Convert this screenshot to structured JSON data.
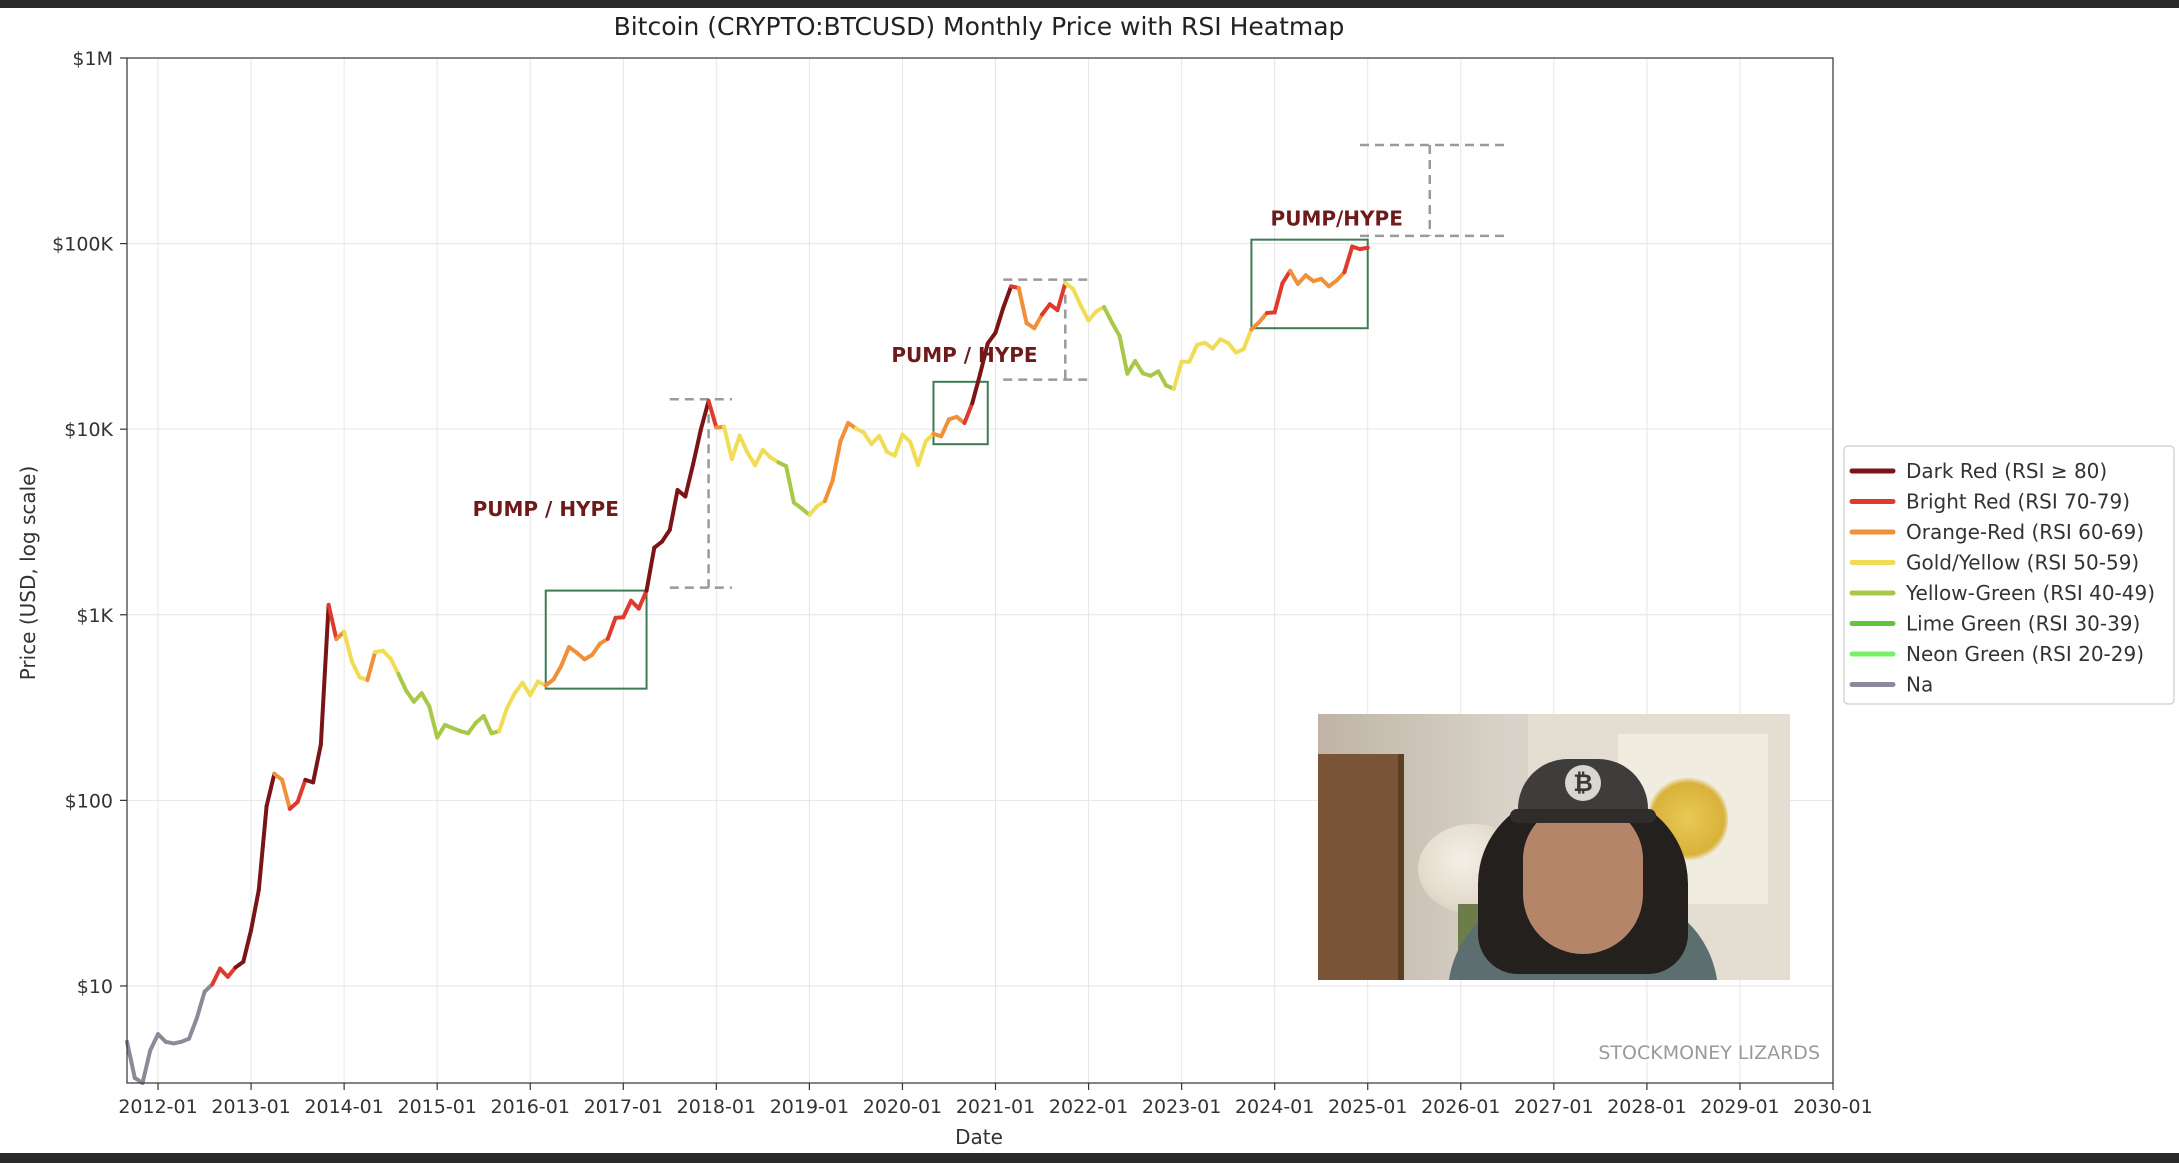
{
  "chart_data": {
    "type": "line",
    "title": "Bitcoin (CRYPTO:BTCUSD) Monthly Price with RSI Heatmap",
    "xlabel": "Date",
    "ylabel": "Price (USD, log scale)",
    "y_scale": "log",
    "ylim": [
      3,
      1000000
    ],
    "xlim": [
      "2011-09",
      "2030-01"
    ],
    "grid": true,
    "legend_position": "right",
    "x_ticks": [
      "2012-01",
      "2013-01",
      "2014-01",
      "2015-01",
      "2016-01",
      "2017-01",
      "2018-01",
      "2019-01",
      "2020-01",
      "2021-01",
      "2022-01",
      "2023-01",
      "2024-01",
      "2025-01",
      "2026-01",
      "2027-01",
      "2028-01",
      "2029-01",
      "2030-01"
    ],
    "y_ticks": [
      {
        "value": 10,
        "label": "$10"
      },
      {
        "value": 100,
        "label": "$100"
      },
      {
        "value": 1000,
        "label": "$1K"
      },
      {
        "value": 10000,
        "label": "$10K"
      },
      {
        "value": 100000,
        "label": "$100K"
      },
      {
        "value": 1000000,
        "label": "$1M"
      }
    ],
    "rsi_colors": {
      "DR": "#7a1416",
      "BR": "#e03a2f",
      "OR": "#f0913a",
      "GY": "#f1dd55",
      "YG": "#a8c84a",
      "LG": "#5cc63c",
      "NG": "#79f06a",
      "NA": "#8a8a99"
    },
    "legend": [
      {
        "key": "DR",
        "label": "Dark Red (RSI ≥ 80)"
      },
      {
        "key": "BR",
        "label": "Bright Red (RSI 70-79)"
      },
      {
        "key": "OR",
        "label": "Orange-Red (RSI 60-69)"
      },
      {
        "key": "GY",
        "label": "Gold/Yellow (RSI 50-59)"
      },
      {
        "key": "YG",
        "label": "Yellow-Green (RSI 40-49)"
      },
      {
        "key": "LG",
        "label": "Lime Green (RSI 30-39)"
      },
      {
        "key": "NG",
        "label": "Neon Green (RSI 20-29)"
      },
      {
        "key": "NA",
        "label": "Na"
      }
    ],
    "series": [
      {
        "x": "2011-09",
        "y": 5,
        "rsi": "NA"
      },
      {
        "x": "2011-10",
        "y": 3.2,
        "rsi": "NA"
      },
      {
        "x": "2011-11",
        "y": 3.0,
        "rsi": "NA"
      },
      {
        "x": "2011-12",
        "y": 4.5,
        "rsi": "NA"
      },
      {
        "x": "2012-01",
        "y": 5.5,
        "rsi": "NA"
      },
      {
        "x": "2012-02",
        "y": 5.0,
        "rsi": "NA"
      },
      {
        "x": "2012-03",
        "y": 4.9,
        "rsi": "NA"
      },
      {
        "x": "2012-04",
        "y": 5.0,
        "rsi": "NA"
      },
      {
        "x": "2012-05",
        "y": 5.2,
        "rsi": "NA"
      },
      {
        "x": "2012-06",
        "y": 6.7,
        "rsi": "NA"
      },
      {
        "x": "2012-07",
        "y": 9.3,
        "rsi": "NA"
      },
      {
        "x": "2012-08",
        "y": 10.2,
        "rsi": "NA"
      },
      {
        "x": "2012-09",
        "y": 12.4,
        "rsi": "BR"
      },
      {
        "x": "2012-10",
        "y": 11.2,
        "rsi": "BR"
      },
      {
        "x": "2012-11",
        "y": 12.6,
        "rsi": "BR"
      },
      {
        "x": "2012-12",
        "y": 13.5,
        "rsi": "DR"
      },
      {
        "x": "2013-01",
        "y": 20,
        "rsi": "DR"
      },
      {
        "x": "2013-02",
        "y": 33,
        "rsi": "DR"
      },
      {
        "x": "2013-03",
        "y": 93,
        "rsi": "DR"
      },
      {
        "x": "2013-04",
        "y": 139,
        "rsi": "DR"
      },
      {
        "x": "2013-05",
        "y": 129,
        "rsi": "OR"
      },
      {
        "x": "2013-06",
        "y": 90,
        "rsi": "OR"
      },
      {
        "x": "2013-07",
        "y": 98,
        "rsi": "BR"
      },
      {
        "x": "2013-08",
        "y": 129,
        "rsi": "BR"
      },
      {
        "x": "2013-09",
        "y": 125,
        "rsi": "DR"
      },
      {
        "x": "2013-10",
        "y": 200,
        "rsi": "DR"
      },
      {
        "x": "2013-11",
        "y": 1130,
        "rsi": "DR"
      },
      {
        "x": "2013-12",
        "y": 740,
        "rsi": "BR"
      },
      {
        "x": "2014-01",
        "y": 810,
        "rsi": "OR"
      },
      {
        "x": "2014-02",
        "y": 560,
        "rsi": "GY"
      },
      {
        "x": "2014-03",
        "y": 460,
        "rsi": "GY"
      },
      {
        "x": "2014-04",
        "y": 445,
        "rsi": "GY"
      },
      {
        "x": "2014-05",
        "y": 630,
        "rsi": "OR"
      },
      {
        "x": "2014-06",
        "y": 640,
        "rsi": "GY"
      },
      {
        "x": "2014-07",
        "y": 580,
        "rsi": "GY"
      },
      {
        "x": "2014-08",
        "y": 480,
        "rsi": "GY"
      },
      {
        "x": "2014-09",
        "y": 390,
        "rsi": "YG"
      },
      {
        "x": "2014-10",
        "y": 340,
        "rsi": "YG"
      },
      {
        "x": "2014-11",
        "y": 378,
        "rsi": "YG"
      },
      {
        "x": "2014-12",
        "y": 320,
        "rsi": "YG"
      },
      {
        "x": "2015-01",
        "y": 218,
        "rsi": "YG"
      },
      {
        "x": "2015-02",
        "y": 255,
        "rsi": "YG"
      },
      {
        "x": "2015-03",
        "y": 245,
        "rsi": "YG"
      },
      {
        "x": "2015-04",
        "y": 236,
        "rsi": "YG"
      },
      {
        "x": "2015-05",
        "y": 230,
        "rsi": "YG"
      },
      {
        "x": "2015-06",
        "y": 262,
        "rsi": "YG"
      },
      {
        "x": "2015-07",
        "y": 285,
        "rsi": "YG"
      },
      {
        "x": "2015-08",
        "y": 230,
        "rsi": "YG"
      },
      {
        "x": "2015-09",
        "y": 236,
        "rsi": "YG"
      },
      {
        "x": "2015-10",
        "y": 314,
        "rsi": "GY"
      },
      {
        "x": "2015-11",
        "y": 378,
        "rsi": "GY"
      },
      {
        "x": "2015-12",
        "y": 430,
        "rsi": "GY"
      },
      {
        "x": "2016-01",
        "y": 369,
        "rsi": "GY"
      },
      {
        "x": "2016-02",
        "y": 437,
        "rsi": "GY"
      },
      {
        "x": "2016-03",
        "y": 416,
        "rsi": "GY"
      },
      {
        "x": "2016-04",
        "y": 448,
        "rsi": "OR"
      },
      {
        "x": "2016-05",
        "y": 531,
        "rsi": "OR"
      },
      {
        "x": "2016-06",
        "y": 670,
        "rsi": "OR"
      },
      {
        "x": "2016-07",
        "y": 624,
        "rsi": "OR"
      },
      {
        "x": "2016-08",
        "y": 575,
        "rsi": "OR"
      },
      {
        "x": "2016-09",
        "y": 609,
        "rsi": "OR"
      },
      {
        "x": "2016-10",
        "y": 700,
        "rsi": "OR"
      },
      {
        "x": "2016-11",
        "y": 742,
        "rsi": "OR"
      },
      {
        "x": "2016-12",
        "y": 963,
        "rsi": "BR"
      },
      {
        "x": "2017-01",
        "y": 970,
        "rsi": "BR"
      },
      {
        "x": "2017-02",
        "y": 1190,
        "rsi": "BR"
      },
      {
        "x": "2017-03",
        "y": 1080,
        "rsi": "BR"
      },
      {
        "x": "2017-04",
        "y": 1350,
        "rsi": "BR"
      },
      {
        "x": "2017-05",
        "y": 2300,
        "rsi": "DR"
      },
      {
        "x": "2017-06",
        "y": 2480,
        "rsi": "DR"
      },
      {
        "x": "2017-07",
        "y": 2870,
        "rsi": "DR"
      },
      {
        "x": "2017-08",
        "y": 4700,
        "rsi": "DR"
      },
      {
        "x": "2017-09",
        "y": 4340,
        "rsi": "DR"
      },
      {
        "x": "2017-10",
        "y": 6470,
        "rsi": "DR"
      },
      {
        "x": "2017-11",
        "y": 9950,
        "rsi": "DR"
      },
      {
        "x": "2017-12",
        "y": 14200,
        "rsi": "DR"
      },
      {
        "x": "2018-01",
        "y": 10200,
        "rsi": "BR"
      },
      {
        "x": "2018-02",
        "y": 10300,
        "rsi": "OR"
      },
      {
        "x": "2018-03",
        "y": 6900,
        "rsi": "GY"
      },
      {
        "x": "2018-04",
        "y": 9240,
        "rsi": "GY"
      },
      {
        "x": "2018-05",
        "y": 7500,
        "rsi": "GY"
      },
      {
        "x": "2018-06",
        "y": 6390,
        "rsi": "GY"
      },
      {
        "x": "2018-07",
        "y": 7730,
        "rsi": "GY"
      },
      {
        "x": "2018-08",
        "y": 7030,
        "rsi": "GY"
      },
      {
        "x": "2018-09",
        "y": 6630,
        "rsi": "GY"
      },
      {
        "x": "2018-10",
        "y": 6320,
        "rsi": "YG"
      },
      {
        "x": "2018-11",
        "y": 4020,
        "rsi": "YG"
      },
      {
        "x": "2018-12",
        "y": 3740,
        "rsi": "YG"
      },
      {
        "x": "2019-01",
        "y": 3450,
        "rsi": "YG"
      },
      {
        "x": "2019-02",
        "y": 3850,
        "rsi": "GY"
      },
      {
        "x": "2019-03",
        "y": 4100,
        "rsi": "GY"
      },
      {
        "x": "2019-04",
        "y": 5300,
        "rsi": "OR"
      },
      {
        "x": "2019-05",
        "y": 8600,
        "rsi": "OR"
      },
      {
        "x": "2019-06",
        "y": 10800,
        "rsi": "OR"
      },
      {
        "x": "2019-07",
        "y": 10100,
        "rsi": "OR"
      },
      {
        "x": "2019-08",
        "y": 9600,
        "rsi": "GY"
      },
      {
        "x": "2019-09",
        "y": 8300,
        "rsi": "GY"
      },
      {
        "x": "2019-10",
        "y": 9200,
        "rsi": "GY"
      },
      {
        "x": "2019-11",
        "y": 7550,
        "rsi": "GY"
      },
      {
        "x": "2019-12",
        "y": 7200,
        "rsi": "GY"
      },
      {
        "x": "2020-01",
        "y": 9350,
        "rsi": "GY"
      },
      {
        "x": "2020-02",
        "y": 8550,
        "rsi": "GY"
      },
      {
        "x": "2020-03",
        "y": 6400,
        "rsi": "GY"
      },
      {
        "x": "2020-04",
        "y": 8600,
        "rsi": "GY"
      },
      {
        "x": "2020-05",
        "y": 9450,
        "rsi": "GY"
      },
      {
        "x": "2020-06",
        "y": 9150,
        "rsi": "OR"
      },
      {
        "x": "2020-07",
        "y": 11300,
        "rsi": "OR"
      },
      {
        "x": "2020-08",
        "y": 11650,
        "rsi": "OR"
      },
      {
        "x": "2020-09",
        "y": 10800,
        "rsi": "OR"
      },
      {
        "x": "2020-10",
        "y": 13800,
        "rsi": "BR"
      },
      {
        "x": "2020-11",
        "y": 19700,
        "rsi": "DR"
      },
      {
        "x": "2020-12",
        "y": 29000,
        "rsi": "DR"
      },
      {
        "x": "2021-01",
        "y": 33100,
        "rsi": "DR"
      },
      {
        "x": "2021-02",
        "y": 45100,
        "rsi": "DR"
      },
      {
        "x": "2021-03",
        "y": 58800,
        "rsi": "DR"
      },
      {
        "x": "2021-04",
        "y": 57700,
        "rsi": "BR"
      },
      {
        "x": "2021-05",
        "y": 37300,
        "rsi": "OR"
      },
      {
        "x": "2021-06",
        "y": 35000,
        "rsi": "OR"
      },
      {
        "x": "2021-07",
        "y": 41500,
        "rsi": "OR"
      },
      {
        "x": "2021-08",
        "y": 47100,
        "rsi": "BR"
      },
      {
        "x": "2021-09",
        "y": 43800,
        "rsi": "BR"
      },
      {
        "x": "2021-10",
        "y": 61300,
        "rsi": "BR"
      },
      {
        "x": "2021-11",
        "y": 57000,
        "rsi": "GY"
      },
      {
        "x": "2021-12",
        "y": 46300,
        "rsi": "GY"
      },
      {
        "x": "2022-01",
        "y": 38500,
        "rsi": "GY"
      },
      {
        "x": "2022-02",
        "y": 43200,
        "rsi": "GY"
      },
      {
        "x": "2022-03",
        "y": 45500,
        "rsi": "GY"
      },
      {
        "x": "2022-04",
        "y": 37700,
        "rsi": "YG"
      },
      {
        "x": "2022-05",
        "y": 31800,
        "rsi": "YG"
      },
      {
        "x": "2022-06",
        "y": 19900,
        "rsi": "YG"
      },
      {
        "x": "2022-07",
        "y": 23300,
        "rsi": "YG"
      },
      {
        "x": "2022-08",
        "y": 20000,
        "rsi": "YG"
      },
      {
        "x": "2022-09",
        "y": 19400,
        "rsi": "YG"
      },
      {
        "x": "2022-10",
        "y": 20500,
        "rsi": "YG"
      },
      {
        "x": "2022-11",
        "y": 17200,
        "rsi": "YG"
      },
      {
        "x": "2022-12",
        "y": 16500,
        "rsi": "YG"
      },
      {
        "x": "2023-01",
        "y": 23100,
        "rsi": "GY"
      },
      {
        "x": "2023-02",
        "y": 23100,
        "rsi": "GY"
      },
      {
        "x": "2023-03",
        "y": 28500,
        "rsi": "GY"
      },
      {
        "x": "2023-04",
        "y": 29200,
        "rsi": "GY"
      },
      {
        "x": "2023-05",
        "y": 27200,
        "rsi": "GY"
      },
      {
        "x": "2023-06",
        "y": 30500,
        "rsi": "GY"
      },
      {
        "x": "2023-07",
        "y": 29200,
        "rsi": "GY"
      },
      {
        "x": "2023-08",
        "y": 25900,
        "rsi": "GY"
      },
      {
        "x": "2023-09",
        "y": 27000,
        "rsi": "GY"
      },
      {
        "x": "2023-10",
        "y": 34500,
        "rsi": "GY"
      },
      {
        "x": "2023-11",
        "y": 37700,
        "rsi": "OR"
      },
      {
        "x": "2023-12",
        "y": 42300,
        "rsi": "OR"
      },
      {
        "x": "2024-01",
        "y": 42600,
        "rsi": "BR"
      },
      {
        "x": "2024-02",
        "y": 61100,
        "rsi": "BR"
      },
      {
        "x": "2024-03",
        "y": 71300,
        "rsi": "BR"
      },
      {
        "x": "2024-04",
        "y": 60600,
        "rsi": "OR"
      },
      {
        "x": "2024-05",
        "y": 67500,
        "rsi": "OR"
      },
      {
        "x": "2024-06",
        "y": 62700,
        "rsi": "OR"
      },
      {
        "x": "2024-07",
        "y": 64600,
        "rsi": "OR"
      },
      {
        "x": "2024-08",
        "y": 58900,
        "rsi": "OR"
      },
      {
        "x": "2024-09",
        "y": 63300,
        "rsi": "OR"
      },
      {
        "x": "2024-10",
        "y": 70200,
        "rsi": "OR"
      },
      {
        "x": "2024-11",
        "y": 96400,
        "rsi": "BR"
      },
      {
        "x": "2024-12",
        "y": 93400,
        "rsi": "BR"
      },
      {
        "x": "2025-01",
        "y": 95000,
        "rsi": "BR"
      }
    ],
    "annotations": [
      {
        "text": "PUMP / HYPE",
        "x": "2016-03",
        "y": 3400
      },
      {
        "text": "PUMP / HYPE",
        "x": "2020-09",
        "y": 23000
      },
      {
        "text": "PUMP/HYPE",
        "x": "2024-09",
        "y": 125000
      }
    ],
    "boxes": [
      {
        "x0": "2016-03",
        "x1": "2017-04",
        "y0": 400,
        "y1": 1350
      },
      {
        "x0": "2020-05",
        "x1": "2020-12",
        "y0": 8300,
        "y1": 18000
      },
      {
        "x0": "2023-10",
        "x1": "2025-01",
        "y0": 35000,
        "y1": 105000
      }
    ],
    "ranges": [
      {
        "x": "2017-12",
        "x0": "2017-07",
        "x1": "2018-03",
        "y_top": 14500,
        "y_bottom": 1400
      },
      {
        "x": "2021-10",
        "x0": "2021-02",
        "x1": "2022-01",
        "y_top": 64000,
        "y_bottom": 18500
      },
      {
        "x": "2025-09",
        "x0": "2024-12",
        "x1": "2026-07",
        "y_top": 340000,
        "y_bottom": 110000
      }
    ],
    "watermark": "STOCKMONEY LIZARDS"
  }
}
